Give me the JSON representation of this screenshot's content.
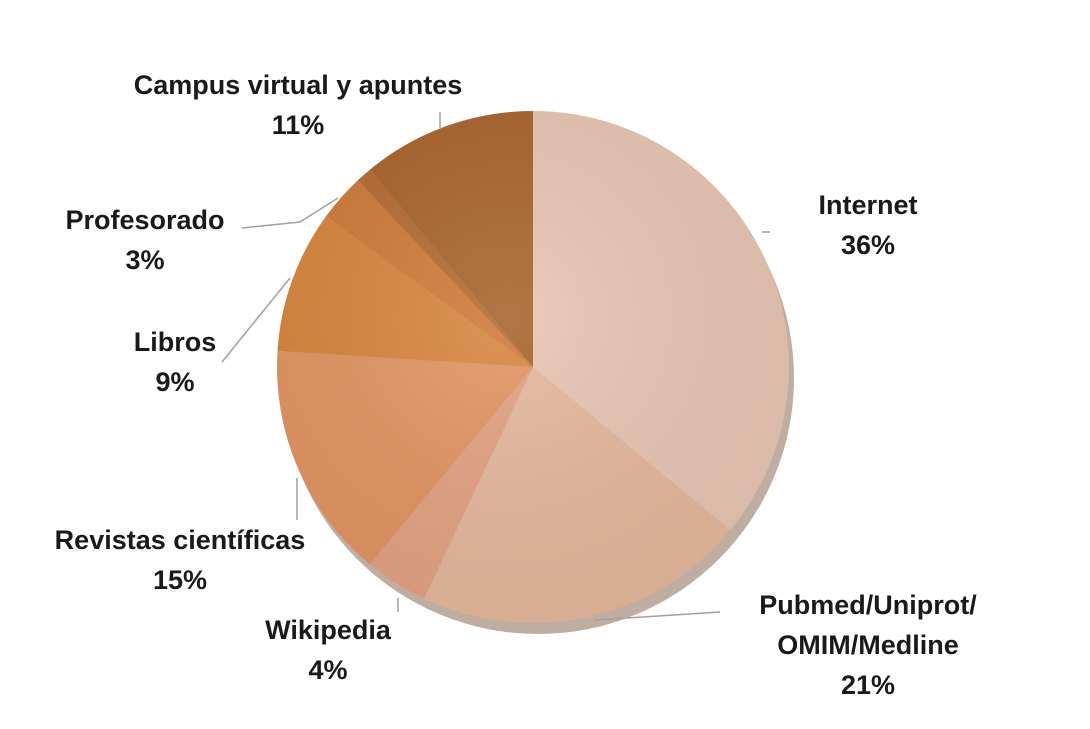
{
  "chart_data": {
    "type": "pie",
    "categories": [
      "Internet",
      "Pubmed/Uniprot/\nOMIM/Medline",
      "Wikipedia",
      "Revistas científicas",
      "Libros",
      "Profesorado",
      null,
      "Campus virtual y apuntes"
    ],
    "values": [
      36,
      21,
      4,
      15,
      9,
      3,
      1,
      11
    ],
    "value_labels": [
      "36%",
      "21%",
      "4%",
      "15%",
      "9%",
      "3%",
      null,
      "11%"
    ],
    "colors": [
      "#e8c5b2",
      "#e5b89d",
      "#e3a282",
      "#e29462",
      "#d8853d",
      "#d07a38",
      "#b56b31",
      "#a8642d"
    ]
  }
}
